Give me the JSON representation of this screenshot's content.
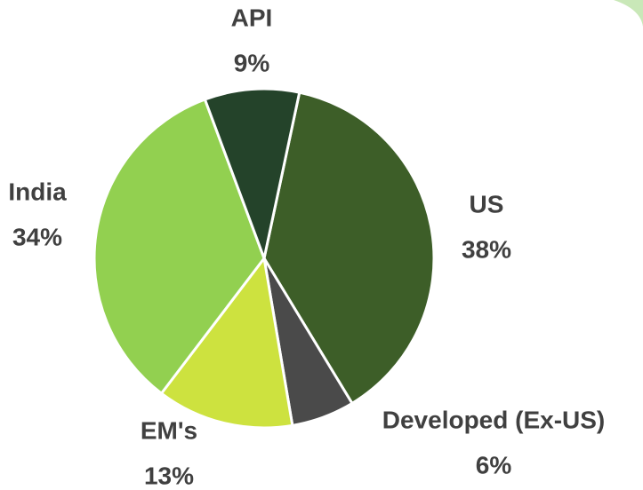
{
  "chart_data": {
    "type": "pie",
    "categories": [
      "US",
      "Developed (Ex-US)",
      "EM's",
      "India",
      "API"
    ],
    "values": [
      38,
      6,
      13,
      34,
      9
    ],
    "value_labels": [
      "38%",
      "6%",
      "13%",
      "34%",
      "9%"
    ],
    "colors": [
      "#3d5e28",
      "#4a4a4a",
      "#cde23f",
      "#92d050",
      "#24432a"
    ]
  }
}
